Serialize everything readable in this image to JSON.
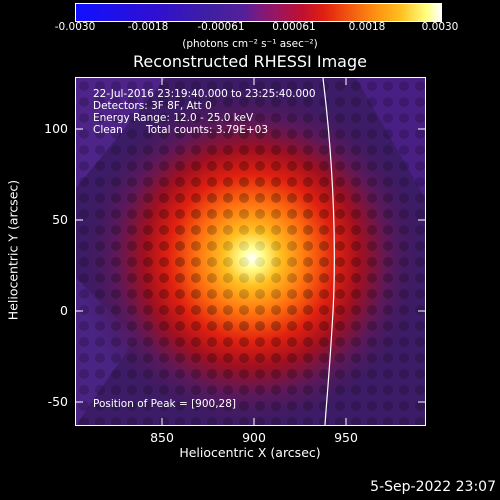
{
  "colorbar": {
    "ticks": [
      "-0.0030",
      "-0.0018",
      "-0.00061",
      "0.00061",
      "0.0018",
      "0.0030"
    ],
    "units": "(photons cm⁻² s⁻¹ asec⁻²)"
  },
  "plot": {
    "title": "Reconstructed RHESSI Image",
    "xlabel": "Heliocentric X (arcsec)",
    "ylabel": "Heliocentric Y (arcsec)",
    "xticks": [
      "850",
      "900",
      "950"
    ],
    "yticks": [
      "100",
      "50",
      "0",
      "-50"
    ],
    "annotations": {
      "time": "22-Jul-2016 23:19:40.000 to 23:25:40.000",
      "detectors": "Detectors: 3F 8F, Att 0",
      "energy": "Energy Range: 12.0 - 25.0 keV",
      "method": "Clean",
      "counts": "Total counts: 3.79E+03",
      "peak": "Position of Peak = [900,28]"
    }
  },
  "footer": {
    "date": "5-Sep-2022 23:07"
  },
  "colors": {
    "background": "#000000",
    "foreground": "#ffffff"
  }
}
